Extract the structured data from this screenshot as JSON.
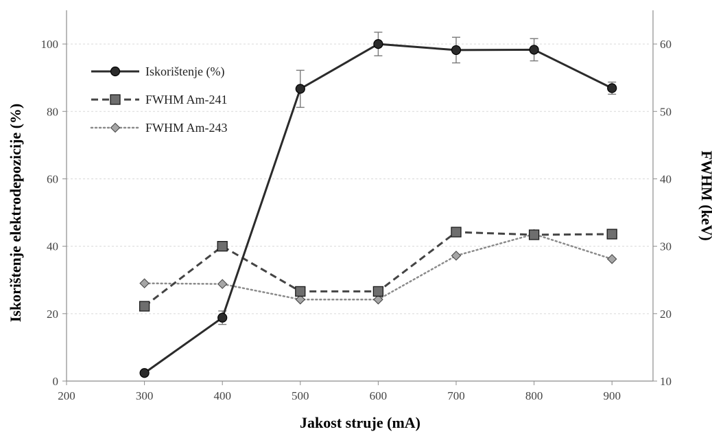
{
  "chart_data": {
    "type": "line",
    "title": "",
    "xlabel": "Jakost struje (mA)",
    "ylabel": "Iskorištenje elektrodepozicije (%)",
    "y2label": "FWHM (keV)",
    "xlim": [
      200,
      950
    ],
    "ylim": [
      0,
      110
    ],
    "y2lim": [
      10,
      65
    ],
    "xticks": [
      200,
      300,
      400,
      500,
      600,
      700,
      800,
      900
    ],
    "yticks": [
      0,
      20,
      40,
      60,
      80,
      100
    ],
    "y2ticks": [
      10,
      20,
      30,
      40,
      50,
      60
    ],
    "grid": true,
    "legend_position": "top-left",
    "series": [
      {
        "name": "Iskorištenje (%)",
        "axis": "left",
        "style": "solid",
        "marker": "circle",
        "color": "#2b2b2b",
        "x": [
          300,
          400,
          500,
          600,
          700,
          800,
          900
        ],
        "y": [
          2.4,
          18.8,
          86.7,
          100.0,
          98.2,
          98.3,
          86.9
        ],
        "error": [
          0,
          2.0,
          5.5,
          3.5,
          3.8,
          3.3,
          1.8
        ]
      },
      {
        "name": "FWHM Am-241",
        "axis": "right",
        "style": "dashed",
        "marker": "square",
        "color": "#444444",
        "x": [
          300,
          400,
          500,
          600,
          700,
          800,
          900
        ],
        "y": [
          21.1,
          30.0,
          23.3,
          23.3,
          32.1,
          31.7,
          31.8
        ]
      },
      {
        "name": "FWHM Am-243",
        "axis": "right",
        "style": "dotted",
        "marker": "diamond",
        "color": "#8a8a8a",
        "x": [
          300,
          400,
          500,
          600,
          700,
          800,
          900
        ],
        "y": [
          24.5,
          24.4,
          22.1,
          22.1,
          28.6,
          31.8,
          28.1
        ]
      }
    ]
  }
}
